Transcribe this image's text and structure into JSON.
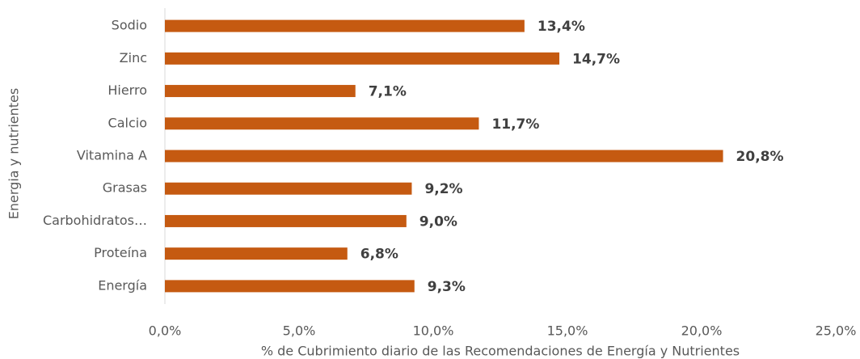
{
  "chart_data": {
    "type": "bar",
    "orientation": "horizontal",
    "x_label": "% de Cubrimiento diario de las Recomendaciones de Energía y Nutrientes",
    "y_label": "Energia y nutrientes",
    "categories": [
      "Sodio",
      "Zinc",
      "Hierro",
      "Calcio",
      "Vitamina A",
      "Grasas",
      "Carbohidratos…",
      "Proteína",
      "Energía"
    ],
    "values": [
      13.4,
      14.7,
      7.1,
      11.7,
      20.8,
      9.2,
      9.0,
      6.8,
      9.3
    ],
    "value_labels": [
      "13,4%",
      "14,7%",
      "7,1%",
      "11,7%",
      "20,8%",
      "9,2%",
      "9,0%",
      "6,8%",
      "9,3%"
    ],
    "color": "#c55a11",
    "xlim": [
      0,
      25
    ],
    "xticks": [
      {
        "value": 0,
        "label": "0,0%"
      },
      {
        "value": 5,
        "label": "5,0%"
      },
      {
        "value": 10,
        "label": "10,0%"
      },
      {
        "value": 15,
        "label": "15,0%"
      },
      {
        "value": 20,
        "label": "20,0%"
      },
      {
        "value": 25,
        "label": "25,0%"
      }
    ],
    "grid": false
  }
}
